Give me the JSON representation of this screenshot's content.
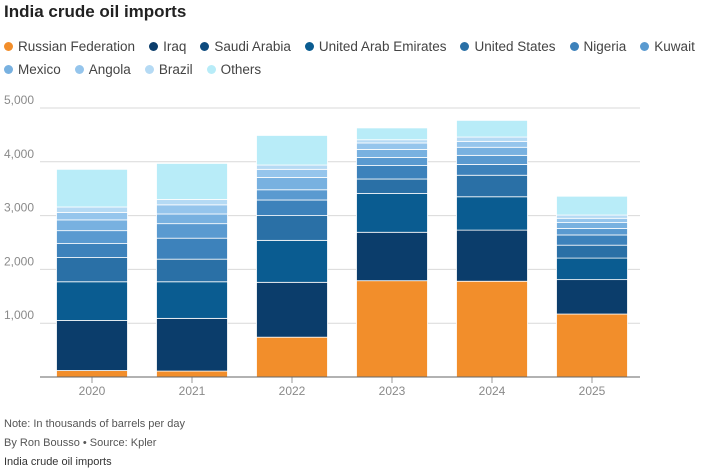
{
  "title": "India crude oil imports",
  "footer": {
    "note": "Note: In thousands of barrels per day",
    "byline": "By Ron Bousso • Source: Kpler",
    "caption": "India crude oil imports"
  },
  "chart_data": {
    "type": "bar",
    "stacked": true,
    "title": "India crude oil imports",
    "categories": [
      "2020",
      "2021",
      "2022",
      "2023",
      "2024",
      "2025"
    ],
    "ylim": [
      0,
      5000
    ],
    "yticks": [
      0,
      1000,
      2000,
      3000,
      4000,
      5000
    ],
    "ytick_labels": [
      "",
      "1,000",
      "2,000",
      "3,000",
      "4,000",
      "5,000"
    ],
    "grid": true,
    "legend_position": "top",
    "series": [
      {
        "name": "Russian Federation",
        "color": "#f28e2b",
        "values": [
          120,
          110,
          740,
          1790,
          1780,
          1170
        ]
      },
      {
        "name": "Iraq",
        "color": "#0b3d6b",
        "values": [
          930,
          980,
          1020,
          900,
          950,
          640
        ]
      },
      {
        "name": "Saudi Arabia",
        "color": "#0d4a7e",
        "values": [
          0,
          0,
          0,
          0,
          0,
          0
        ]
      },
      {
        "name": "United Arab Emirates",
        "color": "#0a5c91",
        "values": [
          720,
          680,
          780,
          720,
          620,
          400
        ]
      },
      {
        "name": "United States",
        "color": "#2a70a6",
        "values": [
          450,
          420,
          460,
          270,
          400,
          240
        ]
      },
      {
        "name": "Nigeria",
        "color": "#3d82bb",
        "values": [
          260,
          390,
          290,
          250,
          200,
          190
        ]
      },
      {
        "name": "Kuwait",
        "color": "#5a9ad0",
        "values": [
          240,
          270,
          190,
          150,
          170,
          120
        ]
      },
      {
        "name": "Mexico",
        "color": "#78b1e0",
        "values": [
          200,
          180,
          230,
          150,
          150,
          110
        ]
      },
      {
        "name": "Angola",
        "color": "#95c5ec",
        "values": [
          140,
          170,
          150,
          120,
          110,
          80
        ]
      },
      {
        "name": "Brazil",
        "color": "#b5daf4",
        "values": [
          100,
          100,
          80,
          60,
          80,
          60
        ]
      },
      {
        "name": "Others",
        "color": "#b8ecf8",
        "values": [
          700,
          670,
          550,
          220,
          310,
          350
        ]
      }
    ]
  }
}
